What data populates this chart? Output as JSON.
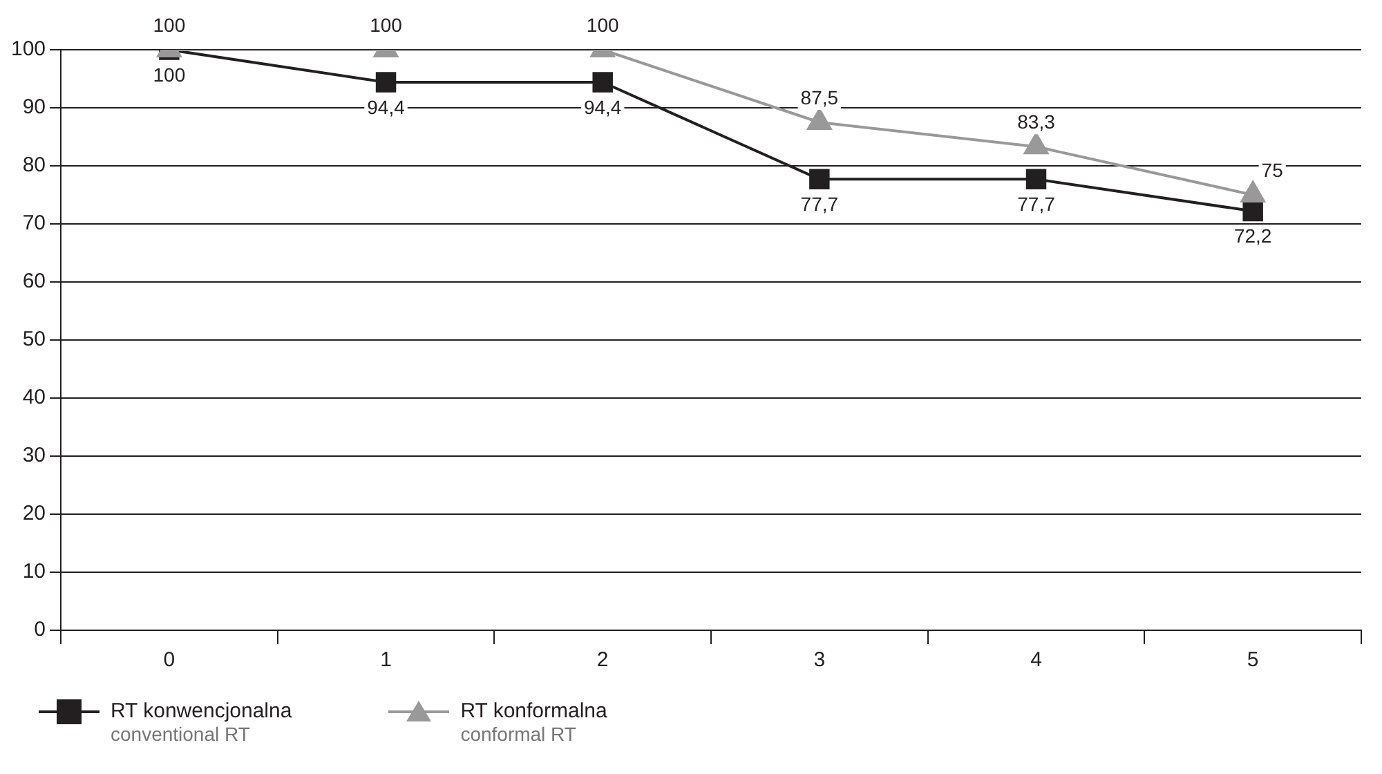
{
  "chart_data": {
    "type": "line",
    "categories": [
      "0",
      "1",
      "2",
      "3",
      "4",
      "5"
    ],
    "series": [
      {
        "name": "RT konwencjonalna\nconventional RT",
        "color": "#231f20",
        "marker": "square",
        "values": [
          100,
          94.4,
          94.4,
          77.7,
          77.7,
          72.2
        ],
        "value_labels": [
          "100",
          "94,4",
          "94,4",
          "77,7",
          "77,7",
          "72,2"
        ]
      },
      {
        "name": "RT konformalna\nconformal RT",
        "color": "#999999",
        "marker": "triangle",
        "values": [
          100,
          100,
          100,
          87.5,
          83.3,
          75
        ],
        "value_labels": [
          "100",
          "100",
          "100",
          "87,5",
          "83,3",
          "75"
        ]
      }
    ],
    "ylim": [
      0,
      100
    ],
    "yticks": [
      0,
      10,
      20,
      30,
      40,
      50,
      60,
      70,
      80,
      90,
      100
    ],
    "grid": "y",
    "legend": "bottom left"
  }
}
